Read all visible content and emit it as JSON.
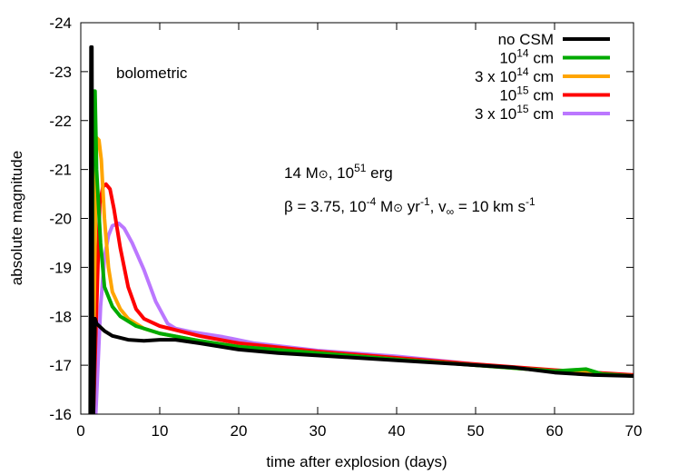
{
  "chart_data": {
    "type": "line",
    "xlabel": "time after explosion (days)",
    "ylabel": "absolute magnitude",
    "xlim": [
      0,
      70
    ],
    "ylim": [
      -16,
      -24
    ],
    "y_reversed": true,
    "xticks": [
      0,
      10,
      20,
      30,
      40,
      50,
      60,
      70
    ],
    "yticks": [
      -16,
      -17,
      -18,
      -19,
      -20,
      -21,
      -22,
      -23,
      -24
    ],
    "grid": false,
    "legend_position": "top-right",
    "annotations": {
      "band": "bolometric",
      "line1": "14 M⊙, 10^51 erg",
      "line2": "β = 3.75, 10^-4 M⊙ yr^-1, v∞ = 10 km s^-1"
    },
    "series": [
      {
        "name": "no CSM",
        "color": "#000000",
        "x": [
          1.2,
          1.3,
          1.4,
          1.5,
          1.6,
          1.8,
          2,
          3,
          4,
          6,
          8,
          10,
          12,
          15,
          20,
          25,
          30,
          40,
          50,
          55,
          60,
          65,
          70
        ],
        "y": [
          -16,
          -23.5,
          -23.5,
          -16,
          -16,
          -17.95,
          -17.85,
          -17.7,
          -17.6,
          -17.52,
          -17.5,
          -17.52,
          -17.52,
          -17.45,
          -17.32,
          -17.25,
          -17.2,
          -17.1,
          -17.0,
          -16.95,
          -16.85,
          -16.8,
          -16.78
        ]
      },
      {
        "name": "10^14 cm",
        "color": "#00aa00",
        "x": [
          1.3,
          1.6,
          1.8,
          2,
          2.5,
          3,
          4,
          5,
          7,
          10,
          15,
          20,
          30,
          40,
          50,
          60,
          64,
          66,
          70
        ],
        "y": [
          -16,
          -22.6,
          -22.6,
          -21,
          -19.5,
          -18.6,
          -18.2,
          -18.0,
          -17.8,
          -17.65,
          -17.5,
          -17.38,
          -17.25,
          -17.12,
          -17.0,
          -16.88,
          -16.92,
          -16.82,
          -16.78
        ]
      },
      {
        "name": "3 x 10^14 cm",
        "color": "#ffa500",
        "x": [
          1.5,
          2,
          2.3,
          2.6,
          3,
          3.5,
          4,
          5,
          6,
          8,
          10,
          15,
          20,
          30,
          40,
          50,
          60,
          70
        ],
        "y": [
          -16,
          -21.65,
          -21.6,
          -21.2,
          -20,
          -19.0,
          -18.5,
          -18.15,
          -17.95,
          -17.75,
          -17.65,
          -17.5,
          -17.38,
          -17.25,
          -17.12,
          -17.0,
          -16.88,
          -16.78
        ]
      },
      {
        "name": "10^15 cm",
        "color": "#ff0000",
        "x": [
          1.6,
          2.4,
          2.8,
          3.2,
          3.7,
          4.2,
          5,
          6,
          7,
          8,
          10,
          15,
          20,
          30,
          40,
          50,
          60,
          70
        ],
        "y": [
          -16,
          -20.3,
          -20.65,
          -20.7,
          -20.6,
          -20.2,
          -19.4,
          -18.6,
          -18.15,
          -17.95,
          -17.8,
          -17.6,
          -17.45,
          -17.28,
          -17.15,
          -17.02,
          -16.9,
          -16.8
        ]
      },
      {
        "name": "3 x 10^15 cm",
        "color": "#bb77ff",
        "x": [
          1.9,
          2.5,
          3,
          3.5,
          4,
          4.8,
          5.5,
          6.5,
          8,
          9.5,
          11,
          12,
          14,
          18,
          22,
          30,
          40,
          50,
          60,
          70
        ],
        "y": [
          -16,
          -18.2,
          -19.2,
          -19.65,
          -19.85,
          -19.9,
          -19.8,
          -19.5,
          -18.95,
          -18.3,
          -17.85,
          -17.75,
          -17.68,
          -17.58,
          -17.45,
          -17.3,
          -17.18,
          -17.02,
          -16.88,
          -16.8
        ]
      }
    ]
  }
}
